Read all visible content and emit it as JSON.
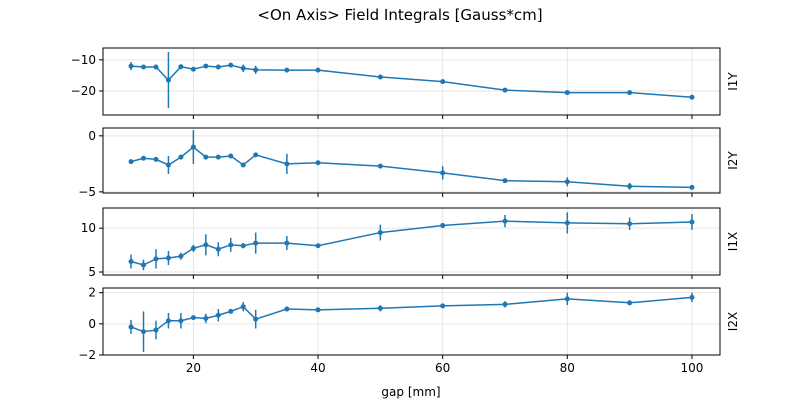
{
  "chart_data": {
    "type": "line",
    "title": "<On Axis> Field Integrals [Gauss*cm]",
    "xlabel": "gap [mm]",
    "xlim": [
      5.5,
      104.5
    ],
    "xticks": [
      20,
      40,
      60,
      80,
      100
    ],
    "grid": true,
    "color": "#1f77b4",
    "x": [
      10,
      12,
      14,
      16,
      18,
      20,
      22,
      24,
      26,
      28,
      30,
      35,
      40,
      50,
      60,
      70,
      80,
      90,
      100
    ],
    "panels": [
      {
        "ylabel": "I1Y",
        "ylim": [
          -27.7,
          -6.2
        ],
        "yticks": [
          -10,
          -20
        ],
        "ytick_labels": [
          "−10",
          "−20"
        ],
        "values": [
          -12,
          -12.3,
          -12.3,
          -16.5,
          -12.2,
          -13,
          -12,
          -12.3,
          -11.7,
          -12.7,
          -13.2,
          -13.3,
          -13.3,
          -15.5,
          -17,
          -19.7,
          -20.5,
          -20.5,
          -22
        ],
        "errors": [
          1.3,
          0.5,
          0.5,
          9,
          0.5,
          0.5,
          0.5,
          0.5,
          0.5,
          1.2,
          1.3,
          0.5,
          0.5,
          0.5,
          0.5,
          0.5,
          0.5,
          0.5,
          0.5
        ]
      },
      {
        "ylabel": "I2Y",
        "ylim": [
          -5.1,
          0.7
        ],
        "yticks": [
          0,
          -5
        ],
        "ytick_labels": [
          "0",
          "−5"
        ],
        "values": [
          -2.3,
          -2.0,
          -2.1,
          -2.6,
          -1.9,
          -1.0,
          -1.9,
          -1.9,
          -1.8,
          -2.6,
          -1.7,
          -2.5,
          -2.4,
          -2.7,
          -3.3,
          -4.0,
          -4.1,
          -4.5,
          -4.6
        ],
        "errors": [
          0.15,
          0.2,
          0.1,
          0.8,
          0.2,
          1.5,
          0.1,
          0.1,
          0.1,
          0.1,
          0.1,
          0.9,
          0.1,
          0.15,
          0.6,
          0.1,
          0.4,
          0.3,
          0.15
        ]
      },
      {
        "ylabel": "I1X",
        "ylim": [
          4.66,
          12.3
        ],
        "yticks": [
          10,
          5
        ],
        "ytick_labels": [
          "10",
          "5"
        ],
        "values": [
          6.2,
          5.8,
          6.5,
          6.6,
          6.8,
          7.7,
          8.1,
          7.6,
          8.1,
          8.0,
          8.3,
          8.3,
          8.0,
          9.5,
          10.3,
          10.8,
          10.6,
          10.5,
          10.7
        ],
        "errors": [
          0.8,
          0.6,
          1.1,
          0.8,
          0.4,
          0.4,
          1.2,
          0.8,
          0.8,
          0.3,
          1.2,
          0.8,
          0.2,
          0.9,
          0.3,
          0.7,
          1.2,
          0.7,
          0.9
        ]
      },
      {
        "ylabel": "I2X",
        "ylim": [
          -2,
          2.3
        ],
        "yticks": [
          2,
          0,
          -2
        ],
        "ytick_labels": [
          "2",
          "0",
          "−2"
        ],
        "values": [
          -0.2,
          -0.5,
          -0.4,
          0.2,
          0.2,
          0.4,
          0.35,
          0.55,
          0.8,
          1.1,
          0.3,
          0.95,
          0.9,
          1.0,
          1.15,
          1.25,
          1.6,
          1.35,
          1.7
        ],
        "errors": [
          0.45,
          1.3,
          0.6,
          0.5,
          0.5,
          0.1,
          0.3,
          0.4,
          0.1,
          0.3,
          0.6,
          0.15,
          0.1,
          0.2,
          0.15,
          0.2,
          0.4,
          0.15,
          0.3
        ]
      }
    ]
  }
}
